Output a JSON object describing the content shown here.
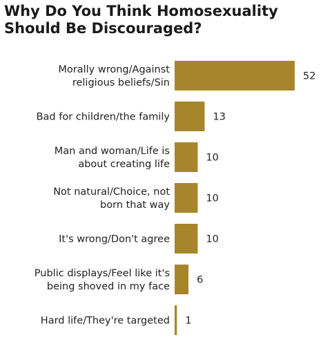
{
  "title_lines": [
    "Why Do You Think Homosexuality",
    "Should Be Discouraged?"
  ],
  "colors": {
    "bar": "#A7862B",
    "text": "#222222"
  },
  "chart_data": {
    "type": "bar",
    "orientation": "horizontal",
    "title": "Why Do You Think Homosexuality Should Be Discouraged?",
    "categories": [
      [
        "Morally wrong/Against",
        "religious beliefs/Sin"
      ],
      [
        "Bad for children/the family"
      ],
      [
        "Man and woman/Life is",
        "about creating life"
      ],
      [
        "Not natural/Choice, not",
        "born that way"
      ],
      [
        "It's wrong/Don't agree"
      ],
      [
        "Public displays/Feel like it's",
        "being shoved in my face"
      ],
      [
        "Hard life/They're targeted"
      ]
    ],
    "values": [
      52,
      13,
      10,
      10,
      10,
      6,
      1
    ],
    "value_labels": [
      "52",
      "13",
      "10",
      "10",
      "10",
      "6",
      "1"
    ],
    "xlabel": "",
    "ylabel": "",
    "xlim": [
      0,
      52
    ],
    "grid": false,
    "legend": "none"
  }
}
